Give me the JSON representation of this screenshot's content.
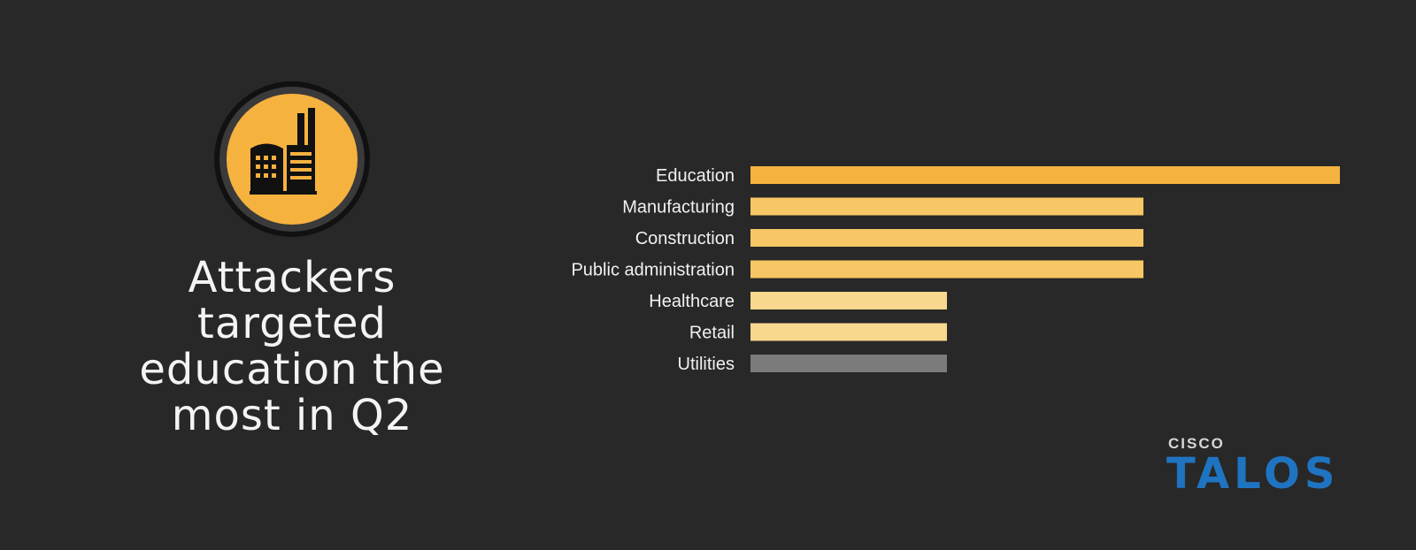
{
  "headline": {
    "lines": [
      "Attackers",
      "targeted",
      "education the",
      "most in Q2"
    ]
  },
  "brand": {
    "top": "CISCO",
    "main": "TALOS"
  },
  "chart_data": {
    "type": "bar",
    "orientation": "horizontal",
    "categories": [
      "Education",
      "Manufacturing",
      "Construction",
      "Public administration",
      "Healthcare",
      "Retail",
      "Utilities"
    ],
    "values": [
      6,
      4,
      4,
      4,
      2,
      2,
      2
    ],
    "xlim": [
      0,
      6
    ],
    "grid": false,
    "legend": "none",
    "colors": {
      "Education": "#f6b23f",
      "Manufacturing": "#f7c765",
      "Construction": "#f7c765",
      "Public administration": "#f7c765",
      "Healthcare": "#f8d78e",
      "Retail": "#f8d78e",
      "Utilities": "#7b7b7b"
    }
  },
  "icon": {
    "name": "building-icon",
    "colors": {
      "outer": "#111111",
      "fill": "#f6b23f",
      "glyph": "#111111"
    }
  }
}
